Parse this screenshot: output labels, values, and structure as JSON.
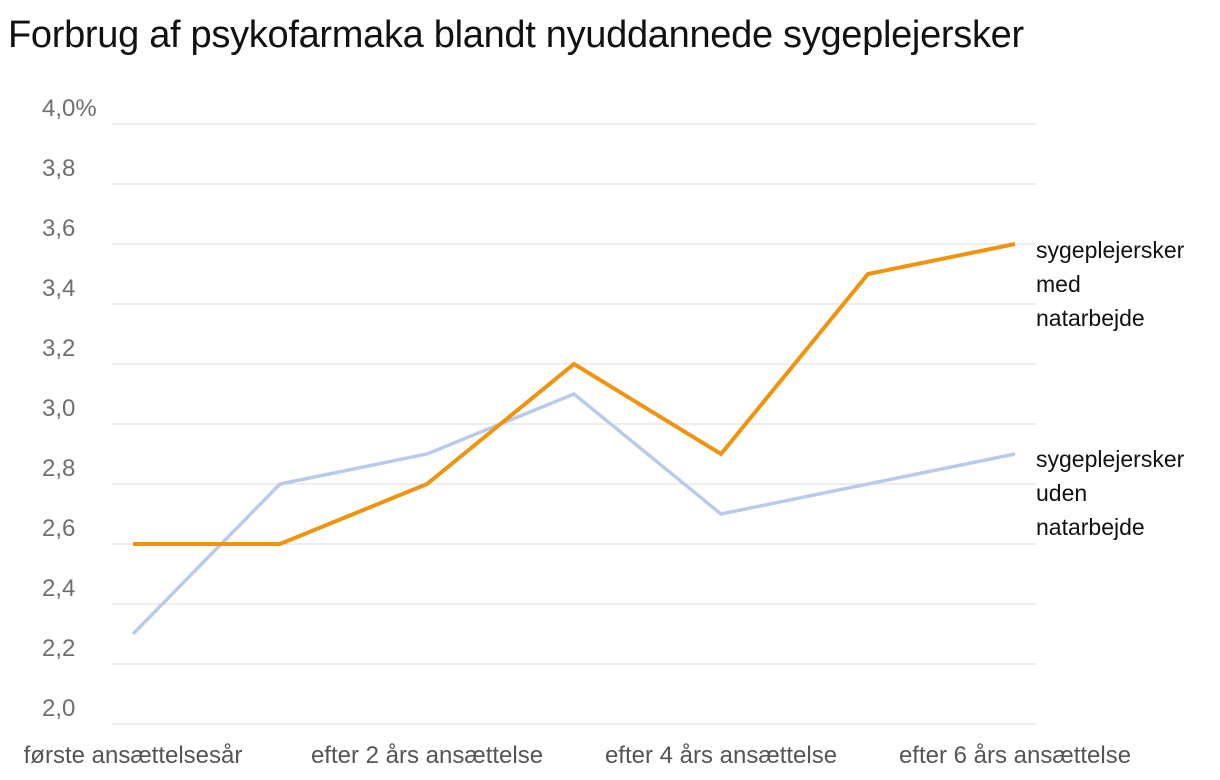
{
  "chart_data": {
    "type": "line",
    "title": "Forbrug af psykofarmaka blandt nyuddannede sygeplejersker",
    "x_categories": [
      "første ansættelsesår",
      "",
      "efter 2 års ansættelse",
      "",
      "efter 4 års ansættelse",
      "",
      "efter 6 års ansættelse"
    ],
    "x_tick_labels": [
      "første ansættelsesår",
      "efter 2 års ansættelse",
      "efter 4 års ansættelse",
      "efter 6 års ansættelse"
    ],
    "y_tick_labels": [
      "2,0",
      "2,2",
      "2,4",
      "2,6",
      "2,8",
      "3,0",
      "3,2",
      "3,4",
      "3,6",
      "3,8",
      "4,0%"
    ],
    "ylim": [
      2.0,
      4.0
    ],
    "grid": true,
    "series": [
      {
        "name_lines": [
          "sygeplejersker",
          "med",
          "natarbejde"
        ],
        "color": "#f0940f",
        "values": [
          2.6,
          2.6,
          2.8,
          3.2,
          2.9,
          3.5,
          3.6
        ]
      },
      {
        "name_lines": [
          "sygeplejersker",
          "uden",
          "natarbejde"
        ],
        "color": "#b9cbec",
        "values": [
          2.3,
          2.8,
          2.9,
          3.1,
          2.7,
          2.8,
          2.9
        ]
      }
    ]
  }
}
